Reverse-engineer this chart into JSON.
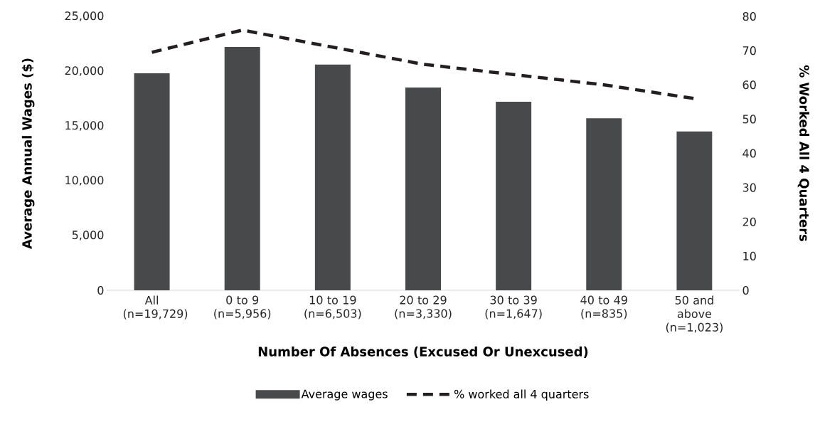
{
  "chart_data": {
    "type": "bar",
    "xlabel": "Number Of Absences (Excused Or Unexcused)",
    "ylabel": "Average Annual Wages ($)",
    "y2label": "% Worked All 4 Quarters",
    "categories": [
      "All (n=19,729)",
      "0 to 9 (n=5,956)",
      "10 to 19 (n=6,503)",
      "20 to 29 (n=3,330)",
      "30 to 39 (n=1,647)",
      "40 to 49 (n=835)",
      "50 and above (n=1,023)"
    ],
    "series": [
      {
        "name": "Average wages",
        "color": "#48494b",
        "values": [
          19800,
          22200,
          20600,
          18500,
          17200,
          15700,
          14500
        ]
      },
      {
        "name": "% worked all 4 quarters",
        "type": "line",
        "axis": "y2",
        "color": "#231f20",
        "line_style": "dashed",
        "values": [
          69.5,
          76,
          71,
          66,
          63,
          60,
          56
        ]
      }
    ],
    "ylim": [
      0,
      25000
    ],
    "yticks": [
      {
        "value": 0,
        "label": "0"
      },
      {
        "value": 5000,
        "label": "5,000"
      },
      {
        "value": 10000,
        "label": "10,000"
      },
      {
        "value": 15000,
        "label": "15,000"
      },
      {
        "value": 20000,
        "label": "20,000"
      },
      {
        "value": 25000,
        "label": "25,000"
      }
    ],
    "y2lim": [
      0,
      80
    ],
    "y2ticks": [
      0,
      10,
      20,
      30,
      40,
      50,
      60,
      70,
      80
    ],
    "legend": "bottom"
  }
}
